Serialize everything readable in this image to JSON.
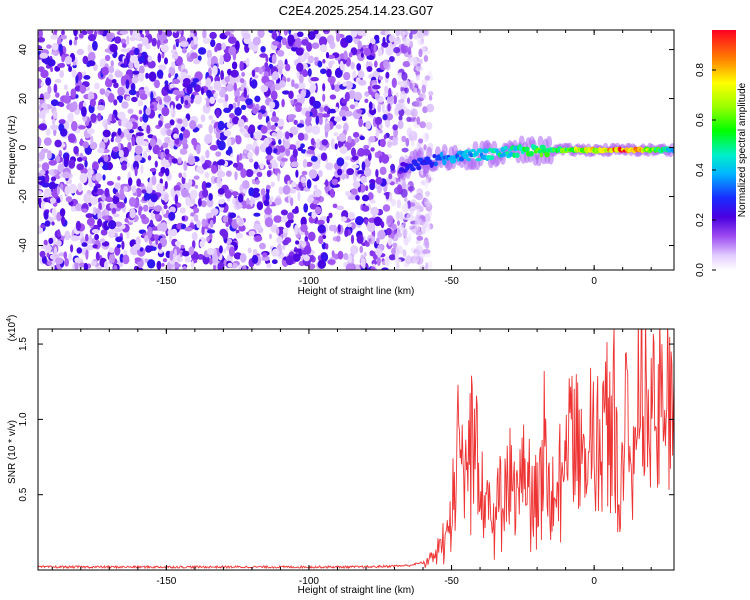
{
  "title": "C2E4.2025.254.14.23.G07",
  "chart_data": [
    {
      "type": "heatmap",
      "name": "spectrogram",
      "xlabel": "Height of straight line (km)",
      "ylabel": "Frequency (Hz)",
      "xlim": [
        -195,
        28
      ],
      "ylim": [
        -50,
        48
      ],
      "xticks": [
        -150,
        -100,
        -50,
        0
      ],
      "yticks": [
        -40,
        -20,
        0,
        20,
        40
      ],
      "colorbar": {
        "label": "Normalized spectral amplitude",
        "range": [
          0.0,
          0.96
        ],
        "ticks": [
          0.0,
          0.2,
          0.4,
          0.6,
          0.8
        ]
      },
      "ridge": {
        "x": [
          -68,
          -60,
          -55,
          -50,
          -45,
          -40,
          -35,
          -30,
          -25,
          -20,
          -15,
          -10,
          -5,
          0,
          5,
          10,
          15,
          20,
          25,
          28
        ],
        "frequency": [
          -8,
          -6,
          -5,
          -4,
          -3,
          -3,
          -2.5,
          -2,
          -1.5,
          -1.5,
          -1,
          -1,
          -1,
          -1,
          -1,
          -1,
          -1,
          -1,
          -1,
          -1
        ],
        "amplitude": [
          0.25,
          0.3,
          0.35,
          0.4,
          0.42,
          0.45,
          0.5,
          0.5,
          0.55,
          0.6,
          0.6,
          0.65,
          0.75,
          0.8,
          0.85,
          0.95,
          0.9,
          0.7,
          0.5,
          0.45
        ]
      },
      "noise_region_x": [
        -195,
        -60
      ]
    },
    {
      "type": "line",
      "name": "snr",
      "xlabel": "Height of straight line (km)",
      "ylabel": "SNR (10 * v/v)",
      "multiplier_label": "(x10",
      "multiplier_exp": "4",
      "xlim": [
        -195,
        28
      ],
      "ylim": [
        0.0,
        1.6
      ],
      "xticks": [
        -150,
        -100,
        -50,
        0
      ],
      "yticks": [
        0.5,
        1.0,
        1.5
      ],
      "series": [
        {
          "name": "SNR",
          "color": "#ee3333",
          "x": [
            -195,
            -120,
            -80,
            -65,
            -60,
            -56,
            -53,
            -50,
            -48,
            -45,
            -42,
            -40,
            -38,
            -35,
            -32,
            -30,
            -27,
            -25,
            -22,
            -20,
            -17,
            -15,
            -12,
            -10,
            -8,
            -5,
            -3,
            0,
            2,
            5,
            7,
            9,
            11,
            13,
            15,
            17,
            19,
            21,
            24,
            26,
            28
          ],
          "y": [
            0.02,
            0.02,
            0.02,
            0.03,
            0.05,
            0.12,
            0.25,
            0.5,
            1.2,
            0.8,
            1.35,
            0.9,
            0.7,
            0.45,
            0.65,
            0.8,
            0.55,
            0.75,
            0.9,
            0.6,
            1.1,
            0.5,
            1.0,
            0.8,
            1.35,
            0.9,
            1.1,
            1.0,
            1.05,
            1.2,
            1.25,
            0.4,
            1.5,
            1.0,
            1.35,
            1.3,
            1.4,
            1.35,
            1.4,
            1.45,
            1.5
          ]
        }
      ]
    }
  ]
}
